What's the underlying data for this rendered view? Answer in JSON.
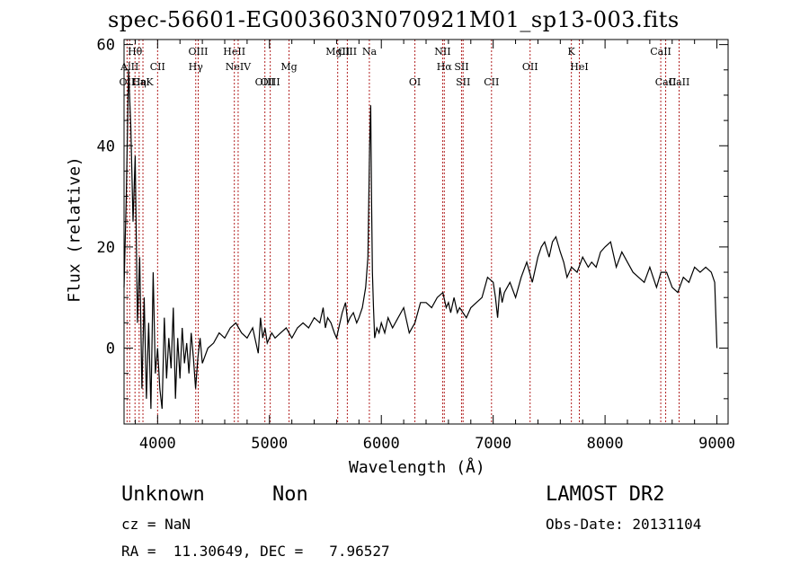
{
  "header": {
    "title": "spec-56601-EG003603N070921M01_sp13-003.fits"
  },
  "info": {
    "class_label": "Unknown",
    "subclass_label": "Non",
    "cz_text": "cz = NaN",
    "radec_text": "RA =  11.30649, DEC =   7.96527",
    "survey_label": "LAMOST DR2",
    "obs_date_text": "Obs-Date: 20131104"
  },
  "colors": {
    "line_marker": "#b22222",
    "spectrum": "#000000",
    "axes": "#000000"
  },
  "chart_data": {
    "type": "line",
    "title": "spec-56601-EG003603N070921M01_sp13-003.fits",
    "xlabel": "Wavelength (Å)",
    "ylabel": "Flux (relative)",
    "xlim": [
      3700,
      9100
    ],
    "ylim": [
      -15,
      61
    ],
    "x_ticks": [
      4000,
      5000,
      6000,
      7000,
      8000,
      9000
    ],
    "y_ticks": [
      0,
      20,
      40,
      60
    ],
    "grid": false,
    "series": [
      {
        "x": [
          3700,
          3720,
          3740,
          3760,
          3780,
          3800,
          3820,
          3840,
          3860,
          3880,
          3900,
          3920,
          3940,
          3960,
          3980,
          4000,
          4020,
          4040,
          4060,
          4080,
          4100,
          4120,
          4140,
          4160,
          4180,
          4200,
          4220,
          4240,
          4260,
          4280,
          4300,
          4320,
          4340,
          4360,
          4380,
          4400,
          4450,
          4500,
          4550,
          4600,
          4650,
          4700,
          4750,
          4800,
          4850,
          4880,
          4900,
          4920,
          4940,
          4960,
          4980,
          5000,
          5020,
          5050,
          5100,
          5150,
          5200,
          5250,
          5300,
          5350,
          5400,
          5450,
          5480,
          5500,
          5520,
          5550,
          5580,
          5600,
          5620,
          5650,
          5680,
          5700,
          5720,
          5750,
          5780,
          5800,
          5830,
          5860,
          5880,
          5895,
          5905,
          5912,
          5920,
          5930,
          5940,
          5960,
          5980,
          6000,
          6030,
          6060,
          6100,
          6150,
          6200,
          6250,
          6300,
          6350,
          6400,
          6450,
          6500,
          6550,
          6580,
          6600,
          6620,
          6650,
          6680,
          6700,
          6730,
          6760,
          6800,
          6850,
          6900,
          6950,
          7000,
          7020,
          7040,
          7060,
          7080,
          7100,
          7150,
          7200,
          7250,
          7300,
          7350,
          7400,
          7430,
          7460,
          7500,
          7530,
          7560,
          7600,
          7630,
          7660,
          7700,
          7750,
          7800,
          7850,
          7880,
          7920,
          7960,
          8000,
          8050,
          8100,
          8150,
          8200,
          8250,
          8300,
          8350,
          8400,
          8430,
          8460,
          8500,
          8550,
          8600,
          8650,
          8700,
          8750,
          8800,
          8850,
          8900,
          8950,
          8980,
          9000
        ],
        "y": [
          12,
          30,
          55,
          44,
          25,
          38,
          5,
          18,
          -8,
          10,
          -10,
          5,
          -12,
          15,
          -5,
          0,
          -8,
          -12,
          6,
          -6,
          2,
          -4,
          8,
          -10,
          2,
          -6,
          4,
          -3,
          1,
          -5,
          3,
          -2,
          -8,
          -2,
          2,
          -3,
          0,
          1,
          3,
          2,
          4,
          5,
          3,
          2,
          4,
          1,
          -1,
          6,
          2,
          4,
          1,
          2,
          3,
          2,
          3,
          4,
          2,
          4,
          5,
          4,
          6,
          5,
          8,
          4,
          6,
          5,
          3,
          2,
          4,
          7,
          9,
          5,
          6,
          7,
          5,
          6,
          8,
          12,
          18,
          40,
          48,
          30,
          15,
          8,
          2,
          4,
          3,
          5,
          3,
          6,
          4,
          6,
          8,
          3,
          5,
          9,
          9,
          8,
          10,
          11,
          8,
          9,
          7,
          10,
          7,
          8,
          7,
          6,
          8,
          9,
          10,
          14,
          13,
          10,
          6,
          12,
          9,
          11,
          13,
          10,
          14,
          17,
          13,
          18,
          20,
          21,
          18,
          21,
          22,
          19,
          17,
          14,
          16,
          15,
          18,
          16,
          17,
          16,
          19,
          20,
          21,
          16,
          19,
          17,
          15,
          14,
          13,
          16,
          14,
          12,
          15,
          15,
          12,
          11,
          14,
          13,
          16,
          15,
          16,
          15,
          13,
          0
        ]
      }
    ],
    "line_labels": [
      {
        "name": "OII",
        "wl": 3727,
        "row": 3
      },
      {
        "name": "AlII",
        "wl": 3750,
        "row": 2
      },
      {
        "name": "Hθ",
        "wl": 3798,
        "row": 1
      },
      {
        "name": "Hη",
        "wl": 3835,
        "row": 3
      },
      {
        "name": "CaK",
        "wl": 3869,
        "row": 3
      },
      {
        "name": "CII",
        "wl": 4000,
        "row": 2
      },
      {
        "name": "OIII",
        "wl": 4363,
        "row": 1
      },
      {
        "name": "Hγ",
        "wl": 4341,
        "row": 2
      },
      {
        "name": "HeII",
        "wl": 4686,
        "row": 1
      },
      {
        "name": "NeIV",
        "wl": 4720,
        "row": 2
      },
      {
        "name": "OIII",
        "wl": 4959,
        "row": 3
      },
      {
        "name": "OIII",
        "wl": 5007,
        "row": 3
      },
      {
        "name": "Mg",
        "wl": 5175,
        "row": 2
      },
      {
        "name": "MgII",
        "wl": 5610,
        "row": 1
      },
      {
        "name": "CIII",
        "wl": 5696,
        "row": 1
      },
      {
        "name": "Na",
        "wl": 5893,
        "row": 1
      },
      {
        "name": "OI",
        "wl": 6300,
        "row": 3
      },
      {
        "name": "NII",
        "wl": 6548,
        "row": 1
      },
      {
        "name": "Hα",
        "wl": 6563,
        "row": 2
      },
      {
        "name": "SII",
        "wl": 6717,
        "row": 2
      },
      {
        "name": "SII",
        "wl": 6731,
        "row": 3
      },
      {
        "name": "CII",
        "wl": 6985,
        "row": 3
      },
      {
        "name": "OII",
        "wl": 7330,
        "row": 2
      },
      {
        "name": "HeI",
        "wl": 7770,
        "row": 2
      },
      {
        "name": "K",
        "wl": 7699,
        "row": 1
      },
      {
        "name": "CaII",
        "wl": 8498,
        "row": 1
      },
      {
        "name": "CaII",
        "wl": 8542,
        "row": 3
      },
      {
        "name": "CaII",
        "wl": 8662,
        "row": 3
      }
    ],
    "marker_lines": [
      3727,
      3750,
      3798,
      3835,
      3869,
      4000,
      4341,
      4363,
      4686,
      4720,
      4959,
      5007,
      5175,
      5610,
      5696,
      5893,
      6300,
      6548,
      6563,
      6717,
      6731,
      6985,
      7330,
      7699,
      7770,
      8498,
      8542,
      8662
    ]
  }
}
